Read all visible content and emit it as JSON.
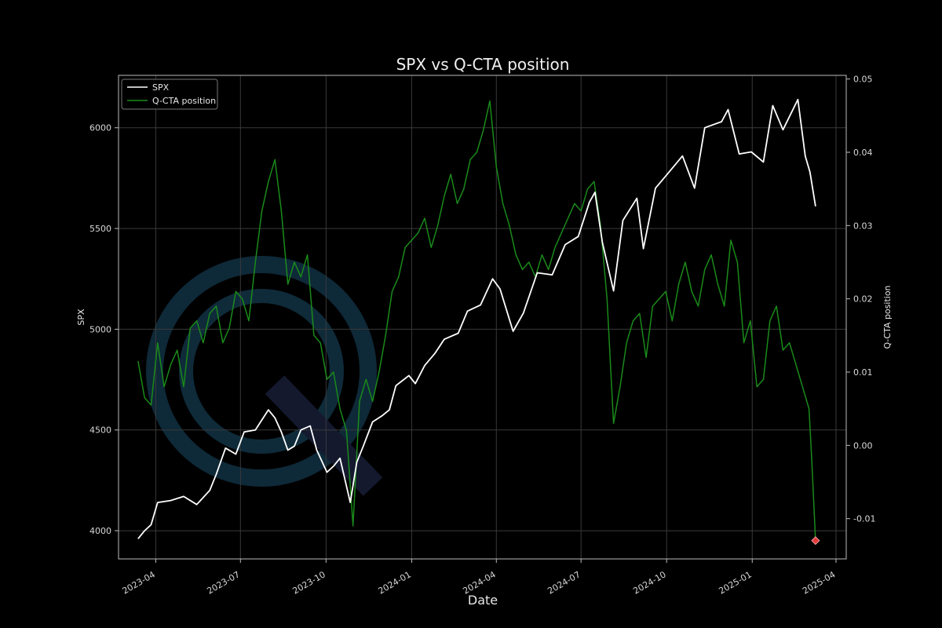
{
  "chart_data": {
    "type": "line",
    "title": "SPX vs Q-CTA position",
    "xlabel": "Date",
    "ylabel_left": "SPX",
    "ylabel_right": "Q-CTA position",
    "grid": true,
    "legend_position": "top-left",
    "x_range": [
      "2023-02-20",
      "2025-04-12"
    ],
    "y_left_range": [
      3860,
      6260
    ],
    "y_right_range": [
      -0.0155,
      0.0505
    ],
    "x_ticks": [
      "2023-04",
      "2023-07",
      "2023-10",
      "2024-01",
      "2024-04",
      "2024-07",
      "2024-10",
      "2025-01",
      "2025-04"
    ],
    "x_tick_dates": [
      "2023-04-01",
      "2023-07-01",
      "2023-10-01",
      "2024-01-01",
      "2024-04-01",
      "2024-07-01",
      "2024-10-01",
      "2025-01-01",
      "2025-04-01"
    ],
    "y_left_ticks": [
      "4000",
      "4500",
      "5000",
      "5500",
      "6000"
    ],
    "y_right_ticks": [
      "-0.01",
      "0.00",
      "0.01",
      "0.02",
      "0.03",
      "0.04",
      "0.05"
    ],
    "series": [
      {
        "name": "SPX",
        "axis": "left",
        "color": "#ffffff",
        "points": [
          [
            "2023-03-13",
            3960
          ],
          [
            "2023-03-20",
            4000
          ],
          [
            "2023-03-27",
            4030
          ],
          [
            "2023-04-03",
            4140
          ],
          [
            "2023-04-17",
            4150
          ],
          [
            "2023-05-01",
            4170
          ],
          [
            "2023-05-15",
            4130
          ],
          [
            "2023-05-29",
            4200
          ],
          [
            "2023-06-05",
            4280
          ],
          [
            "2023-06-15",
            4410
          ],
          [
            "2023-06-26",
            4380
          ],
          [
            "2023-07-05",
            4490
          ],
          [
            "2023-07-17",
            4500
          ],
          [
            "2023-07-31",
            4600
          ],
          [
            "2023-08-07",
            4560
          ],
          [
            "2023-08-14",
            4490
          ],
          [
            "2023-08-21",
            4400
          ],
          [
            "2023-08-28",
            4420
          ],
          [
            "2023-09-04",
            4500
          ],
          [
            "2023-09-14",
            4520
          ],
          [
            "2023-09-21",
            4400
          ],
          [
            "2023-10-02",
            4290
          ],
          [
            "2023-10-09",
            4320
          ],
          [
            "2023-10-16",
            4360
          ],
          [
            "2023-10-27",
            4140
          ],
          [
            "2023-11-03",
            4340
          ],
          [
            "2023-11-10",
            4420
          ],
          [
            "2023-11-20",
            4540
          ],
          [
            "2023-11-30",
            4570
          ],
          [
            "2023-12-08",
            4600
          ],
          [
            "2023-12-15",
            4720
          ],
          [
            "2023-12-29",
            4770
          ],
          [
            "2024-01-05",
            4730
          ],
          [
            "2024-01-15",
            4820
          ],
          [
            "2024-01-26",
            4880
          ],
          [
            "2024-02-05",
            4950
          ],
          [
            "2024-02-20",
            4980
          ],
          [
            "2024-03-01",
            5090
          ],
          [
            "2024-03-15",
            5120
          ],
          [
            "2024-03-28",
            5250
          ],
          [
            "2024-04-05",
            5200
          ],
          [
            "2024-04-19",
            4990
          ],
          [
            "2024-04-30",
            5080
          ],
          [
            "2024-05-15",
            5280
          ],
          [
            "2024-05-31",
            5270
          ],
          [
            "2024-06-14",
            5420
          ],
          [
            "2024-06-28",
            5460
          ],
          [
            "2024-07-10",
            5630
          ],
          [
            "2024-07-16",
            5680
          ],
          [
            "2024-07-24",
            5430
          ],
          [
            "2024-08-05",
            5190
          ],
          [
            "2024-08-15",
            5540
          ],
          [
            "2024-08-30",
            5650
          ],
          [
            "2024-09-06",
            5400
          ],
          [
            "2024-09-19",
            5700
          ],
          [
            "2024-09-30",
            5760
          ],
          [
            "2024-10-18",
            5860
          ],
          [
            "2024-10-31",
            5700
          ],
          [
            "2024-11-11",
            6000
          ],
          [
            "2024-11-29",
            6030
          ],
          [
            "2024-12-06",
            6090
          ],
          [
            "2024-12-18",
            5870
          ],
          [
            "2024-12-31",
            5880
          ],
          [
            "2025-01-13",
            5830
          ],
          [
            "2025-01-23",
            6110
          ],
          [
            "2025-02-03",
            5990
          ],
          [
            "2025-02-19",
            6140
          ],
          [
            "2025-02-27",
            5860
          ],
          [
            "2025-03-04",
            5780
          ],
          [
            "2025-03-10",
            5610
          ]
        ]
      },
      {
        "name": "Q-CTA position",
        "axis": "right",
        "color": "#1a8a1a",
        "points": [
          [
            "2023-03-13",
            0.0115
          ],
          [
            "2023-03-20",
            0.0065
          ],
          [
            "2023-03-27",
            0.0055
          ],
          [
            "2023-04-03",
            0.014
          ],
          [
            "2023-04-10",
            0.008
          ],
          [
            "2023-04-17",
            0.011
          ],
          [
            "2023-04-24",
            0.013
          ],
          [
            "2023-05-01",
            0.008
          ],
          [
            "2023-05-08",
            0.016
          ],
          [
            "2023-05-15",
            0.017
          ],
          [
            "2023-05-22",
            0.014
          ],
          [
            "2023-05-29",
            0.018
          ],
          [
            "2023-06-05",
            0.019
          ],
          [
            "2023-06-12",
            0.014
          ],
          [
            "2023-06-19",
            0.016
          ],
          [
            "2023-06-26",
            0.021
          ],
          [
            "2023-07-03",
            0.02
          ],
          [
            "2023-07-10",
            0.017
          ],
          [
            "2023-07-17",
            0.025
          ],
          [
            "2023-07-24",
            0.032
          ],
          [
            "2023-07-31",
            0.036
          ],
          [
            "2023-08-07",
            0.039
          ],
          [
            "2023-08-14",
            0.032
          ],
          [
            "2023-08-21",
            0.022
          ],
          [
            "2023-08-28",
            0.025
          ],
          [
            "2023-09-04",
            0.023
          ],
          [
            "2023-09-11",
            0.026
          ],
          [
            "2023-09-18",
            0.015
          ],
          [
            "2023-09-25",
            0.014
          ],
          [
            "2023-10-02",
            0.009
          ],
          [
            "2023-10-09",
            0.01
          ],
          [
            "2023-10-16",
            0.005
          ],
          [
            "2023-10-23",
            0.002
          ],
          [
            "2023-10-30",
            -0.011
          ],
          [
            "2023-11-06",
            0.006
          ],
          [
            "2023-11-13",
            0.009
          ],
          [
            "2023-11-20",
            0.006
          ],
          [
            "2023-11-27",
            0.01
          ],
          [
            "2023-12-04",
            0.015
          ],
          [
            "2023-12-11",
            0.021
          ],
          [
            "2023-12-18",
            0.023
          ],
          [
            "2023-12-25",
            0.027
          ],
          [
            "2024-01-01",
            0.028
          ],
          [
            "2024-01-08",
            0.029
          ],
          [
            "2024-01-15",
            0.031
          ],
          [
            "2024-01-22",
            0.027
          ],
          [
            "2024-01-29",
            0.03
          ],
          [
            "2024-02-05",
            0.034
          ],
          [
            "2024-02-12",
            0.037
          ],
          [
            "2024-02-19",
            0.033
          ],
          [
            "2024-02-26",
            0.035
          ],
          [
            "2024-03-04",
            0.039
          ],
          [
            "2024-03-11",
            0.04
          ],
          [
            "2024-03-18",
            0.043
          ],
          [
            "2024-03-25",
            0.047
          ],
          [
            "2024-04-01",
            0.038
          ],
          [
            "2024-04-08",
            0.033
          ],
          [
            "2024-04-15",
            0.03
          ],
          [
            "2024-04-22",
            0.026
          ],
          [
            "2024-04-29",
            0.024
          ],
          [
            "2024-05-06",
            0.025
          ],
          [
            "2024-05-13",
            0.023
          ],
          [
            "2024-05-20",
            0.026
          ],
          [
            "2024-05-27",
            0.024
          ],
          [
            "2024-06-03",
            0.027
          ],
          [
            "2024-06-10",
            0.029
          ],
          [
            "2024-06-17",
            0.031
          ],
          [
            "2024-06-24",
            0.033
          ],
          [
            "2024-07-01",
            0.032
          ],
          [
            "2024-07-08",
            0.035
          ],
          [
            "2024-07-15",
            0.036
          ],
          [
            "2024-07-22",
            0.03
          ],
          [
            "2024-07-29",
            0.02
          ],
          [
            "2024-08-05",
            0.003
          ],
          [
            "2024-08-12",
            0.008
          ],
          [
            "2024-08-19",
            0.014
          ],
          [
            "2024-08-26",
            0.017
          ],
          [
            "2024-09-02",
            0.018
          ],
          [
            "2024-09-09",
            0.012
          ],
          [
            "2024-09-16",
            0.019
          ],
          [
            "2024-09-23",
            0.02
          ],
          [
            "2024-09-30",
            0.021
          ],
          [
            "2024-10-07",
            0.017
          ],
          [
            "2024-10-14",
            0.022
          ],
          [
            "2024-10-21",
            0.025
          ],
          [
            "2024-10-28",
            0.021
          ],
          [
            "2024-11-04",
            0.019
          ],
          [
            "2024-11-11",
            0.024
          ],
          [
            "2024-11-18",
            0.026
          ],
          [
            "2024-11-25",
            0.022
          ],
          [
            "2024-12-02",
            0.019
          ],
          [
            "2024-12-09",
            0.028
          ],
          [
            "2024-12-16",
            0.025
          ],
          [
            "2024-12-23",
            0.014
          ],
          [
            "2024-12-30",
            0.017
          ],
          [
            "2025-01-06",
            0.008
          ],
          [
            "2025-01-13",
            0.009
          ],
          [
            "2025-01-20",
            0.017
          ],
          [
            "2025-01-27",
            0.019
          ],
          [
            "2025-02-03",
            0.013
          ],
          [
            "2025-02-10",
            0.014
          ],
          [
            "2025-02-17",
            0.011
          ],
          [
            "2025-02-24",
            0.008
          ],
          [
            "2025-03-03",
            0.005
          ],
          [
            "2025-03-06",
            -0.002
          ],
          [
            "2025-03-10",
            -0.013
          ]
        ]
      }
    ],
    "annotations": [
      {
        "type": "marker",
        "date": "2025-03-10",
        "axis": "right",
        "value": -0.013,
        "color": "#e23c3c"
      }
    ]
  }
}
